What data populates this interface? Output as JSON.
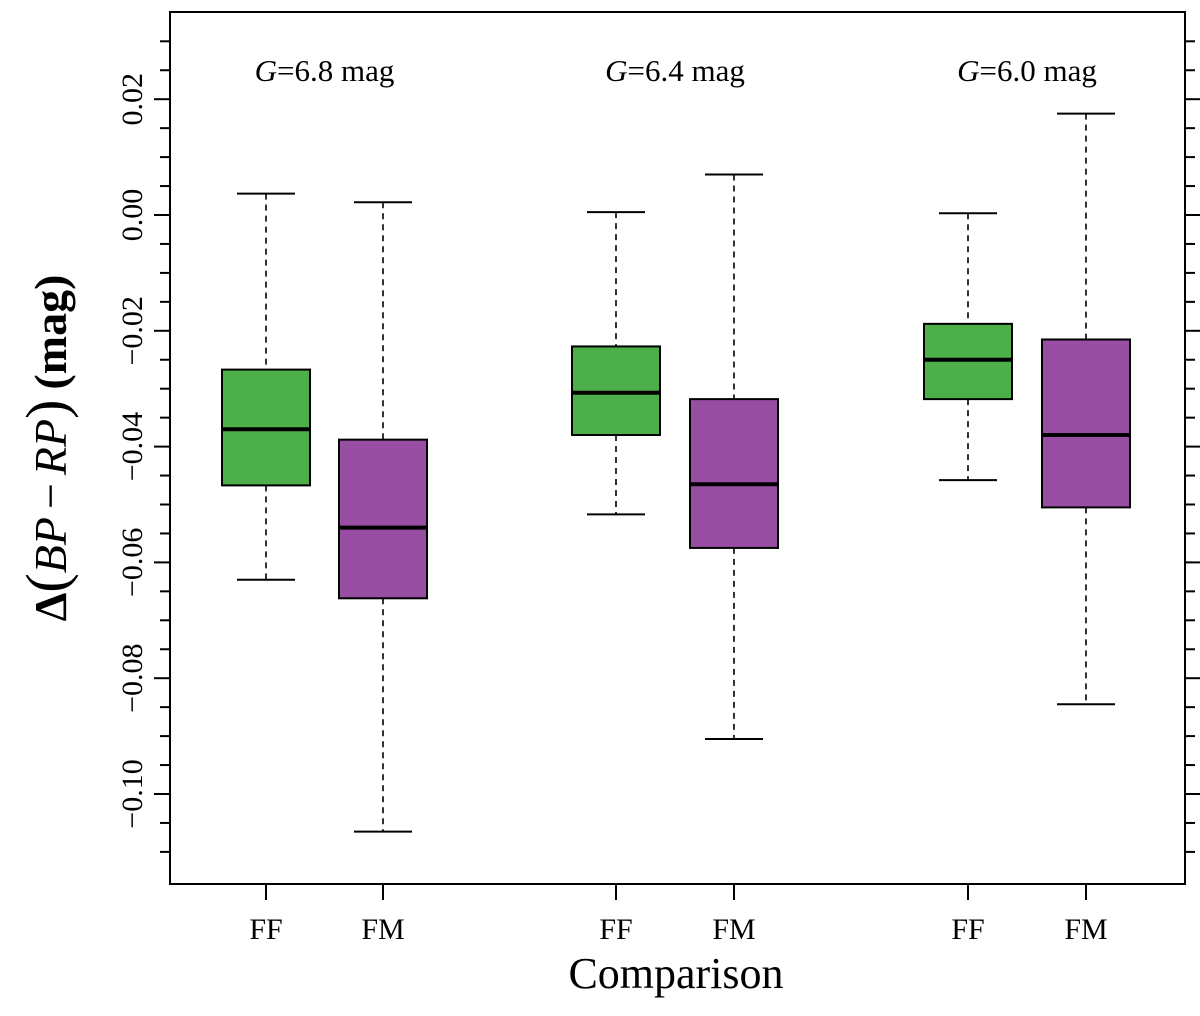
{
  "chart_data": {
    "type": "boxplot",
    "xlabel": "Comparison",
    "ylabel": {
      "prefix": "Δ",
      "bp": "BP",
      "minus": "−",
      "rp": "RP",
      "unit": "(mag)"
    },
    "ylim": [
      -0.115,
      0.035
    ],
    "y_ticks_major": [
      -0.1,
      -0.08,
      -0.06,
      -0.04,
      -0.02,
      0.0,
      0.02
    ],
    "y_tick_labels": [
      "−0.10",
      "−0.08",
      "−0.06",
      "−0.04",
      "−0.02",
      "0.00",
      "0.02"
    ],
    "y_tick_minor_step": 0.005,
    "groups": [
      {
        "annotation": {
          "italic": "G",
          "rest": "=6.8 mag"
        },
        "boxes": [
          {
            "label": "FF",
            "color": "#4daf4a",
            "whisker_low": -0.063,
            "q1": -0.0467,
            "median": -0.037,
            "q3": -0.0267,
            "whisker_high": 0.0037
          },
          {
            "label": "FM",
            "color": "#984ea3",
            "whisker_low": -0.1065,
            "q1": -0.0662,
            "median": -0.054,
            "q3": -0.0388,
            "whisker_high": 0.0022
          }
        ]
      },
      {
        "annotation": {
          "italic": "G",
          "rest": "=6.4 mag"
        },
        "boxes": [
          {
            "label": "FF",
            "color": "#4daf4a",
            "whisker_low": -0.0517,
            "q1": -0.038,
            "median": -0.0307,
            "q3": -0.0227,
            "whisker_high": 0.0005
          },
          {
            "label": "FM",
            "color": "#984ea3",
            "whisker_low": -0.0905,
            "q1": -0.0575,
            "median": -0.0465,
            "q3": -0.0318,
            "whisker_high": 0.007
          }
        ]
      },
      {
        "annotation": {
          "italic": "G",
          "rest": "=6.0 mag"
        },
        "boxes": [
          {
            "label": "FF",
            "color": "#4daf4a",
            "whisker_low": -0.0458,
            "q1": -0.0318,
            "median": -0.025,
            "q3": -0.0188,
            "whisker_high": 0.0003
          },
          {
            "label": "FM",
            "color": "#984ea3",
            "whisker_low": -0.0845,
            "q1": -0.0505,
            "median": -0.038,
            "q3": -0.0215,
            "whisker_high": 0.0175
          }
        ]
      }
    ]
  }
}
